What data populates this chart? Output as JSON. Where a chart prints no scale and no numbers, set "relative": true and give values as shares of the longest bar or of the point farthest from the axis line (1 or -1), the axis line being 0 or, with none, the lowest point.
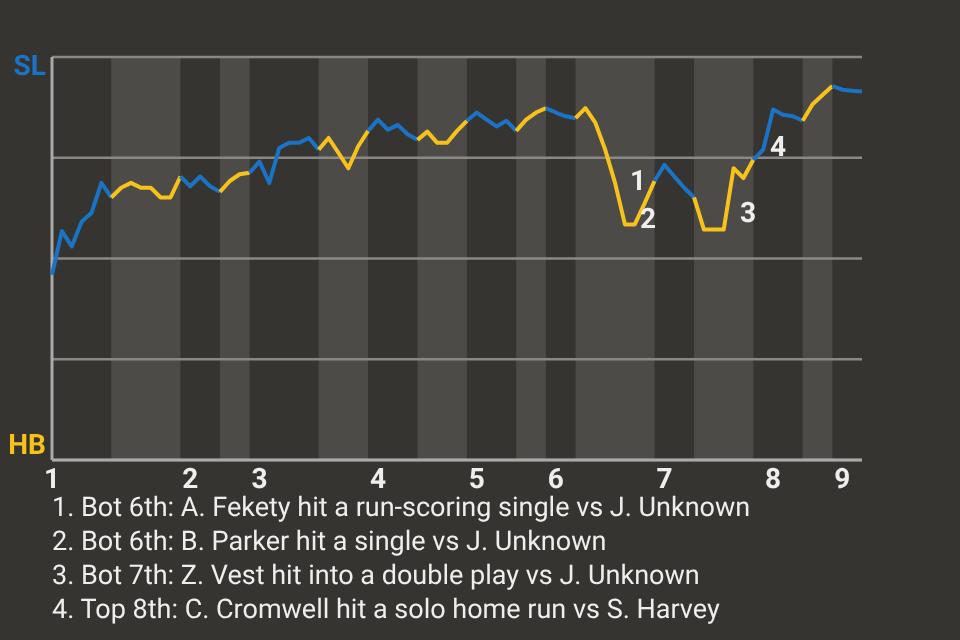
{
  "chart_data": {
    "type": "line",
    "relative": true,
    "categories": [
      "1",
      null,
      null,
      null,
      null,
      null,
      null,
      null,
      null,
      null,
      null,
      null,
      null,
      null,
      "2",
      null,
      null,
      null,
      null,
      null,
      null,
      "3",
      null,
      null,
      null,
      null,
      null,
      null,
      null,
      null,
      null,
      null,
      null,
      "4",
      null,
      null,
      null,
      null,
      null,
      null,
      null,
      null,
      null,
      "5",
      null,
      null,
      null,
      null,
      null,
      null,
      null,
      "6",
      null,
      null,
      null,
      null,
      null,
      null,
      null,
      null,
      null,
      null,
      "7",
      null,
      null,
      null,
      null,
      null,
      null,
      null,
      null,
      null,
      null,
      "8",
      null,
      null,
      null,
      null,
      null,
      null,
      "9",
      null,
      null
    ],
    "grid": "y",
    "marker": "none",
    "line_style": "solid",
    "series": [
      {
        "name": "SL",
        "color": "#1a73c4",
        "values": [
          0.495,
          0.612,
          0.571,
          0.637,
          0.661,
          0.741,
          0.702,
          null,
          null,
          null,
          null,
          null,
          null,
          null,
          null,
          null,
          null,
          null,
          null,
          null,
          null,
          null,
          null,
          null,
          null,
          null,
          null,
          null,
          null,
          null,
          null,
          null,
          null,
          null,
          null,
          null,
          null,
          null,
          null,
          null,
          null,
          null,
          null,
          null,
          null,
          null,
          null,
          null,
          null,
          null,
          null,
          null,
          null,
          null,
          null,
          null,
          null,
          null,
          null,
          null,
          null,
          null,
          null,
          null,
          null,
          null,
          null,
          null,
          null,
          null,
          null,
          null,
          null,
          null,
          null,
          null,
          null,
          null,
          null,
          null,
          null,
          null,
          null
        ]
      },
      {
        "name": "HB",
        "color": "#f7c21b",
        "values": [
          null,
          null,
          null,
          null,
          null,
          null,
          0.702,
          0.728,
          0.741,
          0.728,
          0.728,
          0.702,
          0.702,
          0.758,
          null,
          null,
          null,
          null,
          null,
          null,
          null,
          null,
          null,
          null,
          null,
          null,
          null,
          null,
          null,
          null,
          null,
          null,
          null,
          null,
          null,
          null,
          null,
          null,
          null,
          null,
          null,
          null,
          null,
          null,
          null,
          null,
          null,
          null,
          null,
          null,
          null,
          null,
          null,
          null,
          null,
          null,
          null,
          null,
          null,
          null,
          null,
          null,
          null,
          null,
          null,
          null,
          null,
          null,
          null,
          null,
          null,
          null,
          null,
          null,
          null,
          null,
          null,
          null,
          null,
          null,
          null,
          null,
          null
        ]
      },
      {
        "color": "#1a73c4",
        "values": [
          null,
          null,
          null,
          null,
          null,
          null,
          null,
          null,
          null,
          null,
          null,
          null,
          null,
          0.758,
          0.732,
          0.758,
          0.732,
          0.717,
          null,
          null,
          null,
          null,
          null,
          null,
          null,
          null,
          null,
          null,
          null,
          null,
          null,
          null,
          null,
          null,
          null,
          null,
          null,
          null,
          null,
          null,
          null,
          null,
          null,
          null,
          null,
          null,
          null,
          null,
          null,
          null,
          null,
          null,
          null,
          null,
          null,
          null,
          null,
          null,
          null,
          null,
          null,
          null,
          null,
          null,
          null,
          null,
          null,
          null,
          null,
          null,
          null,
          null,
          null,
          null,
          null,
          null,
          null,
          null,
          null,
          null,
          null,
          null,
          null
        ]
      },
      {
        "color": "#f7c21b",
        "values": [
          null,
          null,
          null,
          null,
          null,
          null,
          null,
          null,
          null,
          null,
          null,
          null,
          null,
          null,
          null,
          null,
          null,
          0.717,
          0.746,
          0.764,
          0.768,
          null,
          null,
          null,
          null,
          null,
          null,
          null,
          null,
          null,
          null,
          null,
          null,
          null,
          null,
          null,
          null,
          null,
          null,
          null,
          null,
          null,
          null,
          null,
          null,
          null,
          null,
          null,
          null,
          null,
          null,
          null,
          null,
          null,
          null,
          null,
          null,
          null,
          null,
          null,
          null,
          null,
          null,
          null,
          null,
          null,
          null,
          null,
          null,
          null,
          null,
          null,
          null,
          null,
          null,
          null,
          null,
          null,
          null,
          null,
          null,
          null,
          null
        ]
      },
      {
        "color": "#1a73c4",
        "values": [
          null,
          null,
          null,
          null,
          null,
          null,
          null,
          null,
          null,
          null,
          null,
          null,
          null,
          null,
          null,
          null,
          null,
          null,
          null,
          null,
          0.768,
          0.798,
          0.741,
          0.834,
          0.848,
          0.848,
          0.861,
          0.83,
          null,
          null,
          null,
          null,
          null,
          null,
          null,
          null,
          null,
          null,
          null,
          null,
          null,
          null,
          null,
          null,
          null,
          null,
          null,
          null,
          null,
          null,
          null,
          null,
          null,
          null,
          null,
          null,
          null,
          null,
          null,
          null,
          null,
          null,
          null,
          null,
          null,
          null,
          null,
          null,
          null,
          null,
          null,
          null,
          null,
          null,
          null,
          null,
          null,
          null,
          null,
          null,
          null,
          null,
          null
        ]
      },
      {
        "color": "#f7c21b",
        "values": [
          null,
          null,
          null,
          null,
          null,
          null,
          null,
          null,
          null,
          null,
          null,
          null,
          null,
          null,
          null,
          null,
          null,
          null,
          null,
          null,
          null,
          null,
          null,
          null,
          null,
          null,
          null,
          0.83,
          0.861,
          0.821,
          0.78,
          0.839,
          0.88,
          null,
          null,
          null,
          null,
          null,
          null,
          null,
          null,
          null,
          null,
          null,
          null,
          null,
          null,
          null,
          null,
          null,
          null,
          null,
          null,
          null,
          null,
          null,
          null,
          null,
          null,
          null,
          null,
          null,
          null,
          null,
          null,
          null,
          null,
          null,
          null,
          null,
          null,
          null,
          null,
          null,
          null,
          null,
          null,
          null,
          null,
          null,
          null,
          null,
          null
        ]
      },
      {
        "color": "#1a73c4",
        "values": [
          null,
          null,
          null,
          null,
          null,
          null,
          null,
          null,
          null,
          null,
          null,
          null,
          null,
          null,
          null,
          null,
          null,
          null,
          null,
          null,
          null,
          null,
          null,
          null,
          null,
          null,
          null,
          null,
          null,
          null,
          null,
          null,
          0.88,
          0.91,
          0.883,
          0.896,
          0.871,
          0.856,
          null,
          null,
          null,
          null,
          null,
          null,
          null,
          null,
          null,
          null,
          null,
          null,
          null,
          null,
          null,
          null,
          null,
          null,
          null,
          null,
          null,
          null,
          null,
          null,
          null,
          null,
          null,
          null,
          null,
          null,
          null,
          null,
          null,
          null,
          null,
          null,
          null,
          null,
          null,
          null,
          null,
          null,
          null,
          null,
          null
        ]
      },
      {
        "color": "#f7c21b",
        "values": [
          null,
          null,
          null,
          null,
          null,
          null,
          null,
          null,
          null,
          null,
          null,
          null,
          null,
          null,
          null,
          null,
          null,
          null,
          null,
          null,
          null,
          null,
          null,
          null,
          null,
          null,
          null,
          null,
          null,
          null,
          null,
          null,
          null,
          null,
          null,
          null,
          null,
          0.856,
          0.878,
          0.848,
          0.848,
          0.88,
          0.907,
          null,
          null,
          null,
          null,
          null,
          null,
          null,
          null,
          null,
          null,
          null,
          null,
          null,
          null,
          null,
          null,
          null,
          null,
          null,
          null,
          null,
          null,
          null,
          null,
          null,
          null,
          null,
          null,
          null,
          null,
          null,
          null,
          null,
          null,
          null,
          null,
          null,
          null,
          null,
          null
        ]
      },
      {
        "color": "#1a73c4",
        "values": [
          null,
          null,
          null,
          null,
          null,
          null,
          null,
          null,
          null,
          null,
          null,
          null,
          null,
          null,
          null,
          null,
          null,
          null,
          null,
          null,
          null,
          null,
          null,
          null,
          null,
          null,
          null,
          null,
          null,
          null,
          null,
          null,
          null,
          null,
          null,
          null,
          null,
          null,
          null,
          null,
          null,
          null,
          0.907,
          0.929,
          0.91,
          0.892,
          0.907,
          0.88,
          null,
          null,
          null,
          null,
          null,
          null,
          null,
          null,
          null,
          null,
          null,
          null,
          null,
          null,
          null,
          null,
          null,
          null,
          null,
          null,
          null,
          null,
          null,
          null,
          null,
          null,
          null,
          null,
          null,
          null,
          null,
          null,
          null,
          null,
          null
        ]
      },
      {
        "color": "#f7c21b",
        "values": [
          null,
          null,
          null,
          null,
          null,
          null,
          null,
          null,
          null,
          null,
          null,
          null,
          null,
          null,
          null,
          null,
          null,
          null,
          null,
          null,
          null,
          null,
          null,
          null,
          null,
          null,
          null,
          null,
          null,
          null,
          null,
          null,
          null,
          null,
          null,
          null,
          null,
          null,
          null,
          null,
          null,
          null,
          null,
          null,
          null,
          null,
          null,
          0.88,
          0.91,
          0.929,
          0.941,
          null,
          null,
          null,
          null,
          null,
          null,
          null,
          null,
          null,
          null,
          null,
          null,
          null,
          null,
          null,
          null,
          null,
          null,
          null,
          null,
          null,
          null,
          null,
          null,
          null,
          null,
          null,
          null,
          null,
          null,
          null,
          null
        ]
      },
      {
        "color": "#1a73c4",
        "values": [
          null,
          null,
          null,
          null,
          null,
          null,
          null,
          null,
          null,
          null,
          null,
          null,
          null,
          null,
          null,
          null,
          null,
          null,
          null,
          null,
          null,
          null,
          null,
          null,
          null,
          null,
          null,
          null,
          null,
          null,
          null,
          null,
          null,
          null,
          null,
          null,
          null,
          null,
          null,
          null,
          null,
          null,
          null,
          null,
          null,
          null,
          null,
          null,
          null,
          null,
          0.941,
          0.929,
          0.919,
          0.914,
          null,
          null,
          null,
          null,
          null,
          null,
          null,
          null,
          null,
          null,
          null,
          null,
          null,
          null,
          null,
          null,
          null,
          null,
          null,
          null,
          null,
          null,
          null,
          null,
          null,
          null,
          null,
          null,
          null
        ]
      },
      {
        "color": "#f7c21b",
        "values": [
          null,
          null,
          null,
          null,
          null,
          null,
          null,
          null,
          null,
          null,
          null,
          null,
          null,
          null,
          null,
          null,
          null,
          null,
          null,
          null,
          null,
          null,
          null,
          null,
          null,
          null,
          null,
          null,
          null,
          null,
          null,
          null,
          null,
          null,
          null,
          null,
          null,
          null,
          null,
          null,
          null,
          null,
          null,
          null,
          null,
          null,
          null,
          null,
          null,
          null,
          null,
          null,
          null,
          0.914,
          0.941,
          0.902,
          0.83,
          0.741,
          0.63,
          0.63,
          0.687,
          0.746,
          null,
          null,
          null,
          null,
          null,
          null,
          null,
          null,
          null,
          null,
          null,
          null,
          null,
          null,
          null,
          null,
          null,
          null,
          null,
          null,
          null
        ]
      },
      {
        "color": "#1a73c4",
        "values": [
          null,
          null,
          null,
          null,
          null,
          null,
          null,
          null,
          null,
          null,
          null,
          null,
          null,
          null,
          null,
          null,
          null,
          null,
          null,
          null,
          null,
          null,
          null,
          null,
          null,
          null,
          null,
          null,
          null,
          null,
          null,
          null,
          null,
          null,
          null,
          null,
          null,
          null,
          null,
          null,
          null,
          null,
          null,
          null,
          null,
          null,
          null,
          null,
          null,
          null,
          null,
          null,
          null,
          null,
          null,
          null,
          null,
          null,
          null,
          null,
          null,
          0.746,
          0.789,
          0.758,
          0.728,
          0.702,
          null,
          null,
          null,
          null,
          null,
          null,
          null,
          null,
          null,
          null,
          null,
          null,
          null,
          null,
          null,
          null,
          null
        ]
      },
      {
        "color": "#f7c21b",
        "values": [
          null,
          null,
          null,
          null,
          null,
          null,
          null,
          null,
          null,
          null,
          null,
          null,
          null,
          null,
          null,
          null,
          null,
          null,
          null,
          null,
          null,
          null,
          null,
          null,
          null,
          null,
          null,
          null,
          null,
          null,
          null,
          null,
          null,
          null,
          null,
          null,
          null,
          null,
          null,
          null,
          null,
          null,
          null,
          null,
          null,
          null,
          null,
          null,
          null,
          null,
          null,
          null,
          null,
          null,
          null,
          null,
          null,
          null,
          null,
          null,
          null,
          null,
          null,
          null,
          null,
          0.702,
          0.616,
          0.616,
          0.616,
          0.78,
          0.754,
          0.803,
          null,
          null,
          null,
          null,
          null,
          null,
          null,
          null,
          null,
          null,
          null
        ]
      },
      {
        "color": "#1a73c4",
        "values": [
          null,
          null,
          null,
          null,
          null,
          null,
          null,
          null,
          null,
          null,
          null,
          null,
          null,
          null,
          null,
          null,
          null,
          null,
          null,
          null,
          null,
          null,
          null,
          null,
          null,
          null,
          null,
          null,
          null,
          null,
          null,
          null,
          null,
          null,
          null,
          null,
          null,
          null,
          null,
          null,
          null,
          null,
          null,
          null,
          null,
          null,
          null,
          null,
          null,
          null,
          null,
          null,
          null,
          null,
          null,
          null,
          null,
          null,
          null,
          null,
          null,
          null,
          null,
          null,
          null,
          null,
          null,
          null,
          null,
          null,
          null,
          0.803,
          0.83,
          0.937,
          0.923,
          0.919,
          0.907,
          null,
          null,
          null,
          null,
          null,
          null
        ]
      },
      {
        "color": "#f7c21b",
        "values": [
          null,
          null,
          null,
          null,
          null,
          null,
          null,
          null,
          null,
          null,
          null,
          null,
          null,
          null,
          null,
          null,
          null,
          null,
          null,
          null,
          null,
          null,
          null,
          null,
          null,
          null,
          null,
          null,
          null,
          null,
          null,
          null,
          null,
          null,
          null,
          null,
          null,
          null,
          null,
          null,
          null,
          null,
          null,
          null,
          null,
          null,
          null,
          null,
          null,
          null,
          null,
          null,
          null,
          null,
          null,
          null,
          null,
          null,
          null,
          null,
          null,
          null,
          null,
          null,
          null,
          null,
          null,
          null,
          null,
          null,
          null,
          null,
          null,
          null,
          null,
          null,
          0.907,
          0.951,
          0.976,
          1,
          null,
          null,
          null
        ]
      },
      {
        "color": "#1a73c4",
        "values": [
          null,
          null,
          null,
          null,
          null,
          null,
          null,
          null,
          null,
          null,
          null,
          null,
          null,
          null,
          null,
          null,
          null,
          null,
          null,
          null,
          null,
          null,
          null,
          null,
          null,
          null,
          null,
          null,
          null,
          null,
          null,
          null,
          null,
          null,
          null,
          null,
          null,
          null,
          null,
          null,
          null,
          null,
          null,
          null,
          null,
          null,
          null,
          null,
          null,
          null,
          null,
          null,
          null,
          null,
          null,
          null,
          null,
          null,
          null,
          null,
          null,
          null,
          null,
          null,
          null,
          null,
          null,
          null,
          null,
          null,
          null,
          null,
          null,
          null,
          null,
          null,
          null,
          null,
          null,
          1,
          0.99,
          0.987,
          0.985
        ]
      }
    ],
    "annotations": [
      "1",
      "2",
      "3",
      "4",
      "1. Bot 6th: A. Fekety hit a run-scoring single vs J. Unknown",
      "2. Bot 6th: B. Parker hit a single vs J. Unknown",
      "3. Bot 7th: Z. Vest hit into a double play vs J. Unknown",
      "4. Top 8th: C. Cromwell hit a solo home run vs S. Harvey"
    ]
  }
}
